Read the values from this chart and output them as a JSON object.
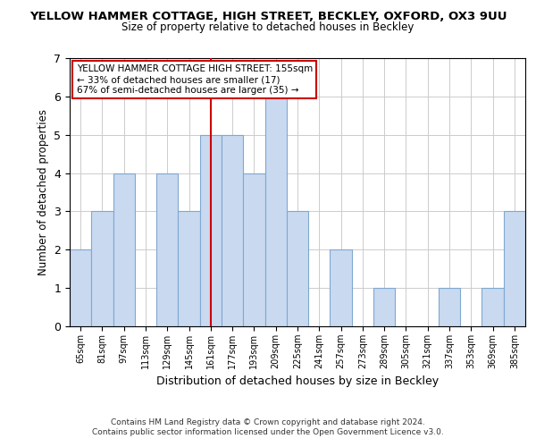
{
  "title": "YELLOW HAMMER COTTAGE, HIGH STREET, BECKLEY, OXFORD, OX3 9UU",
  "subtitle": "Size of property relative to detached houses in Beckley",
  "xlabel": "Distribution of detached houses by size in Beckley",
  "ylabel": "Number of detached properties",
  "bar_labels": [
    "65sqm",
    "81sqm",
    "97sqm",
    "113sqm",
    "129sqm",
    "145sqm",
    "161sqm",
    "177sqm",
    "193sqm",
    "209sqm",
    "225sqm",
    "241sqm",
    "257sqm",
    "273sqm",
    "289sqm",
    "305sqm",
    "321sqm",
    "337sqm",
    "353sqm",
    "369sqm",
    "385sqm"
  ],
  "bar_values": [
    2,
    3,
    4,
    0,
    4,
    3,
    5,
    5,
    4,
    6,
    3,
    0,
    2,
    0,
    1,
    0,
    0,
    1,
    0,
    1,
    3
  ],
  "bar_color": "#c9d9f0",
  "bar_edge_color": "#7fa8d0",
  "vline_x": 6,
  "vline_color": "#cc0000",
  "ylim": [
    0,
    7
  ],
  "yticks": [
    0,
    1,
    2,
    3,
    4,
    5,
    6,
    7
  ],
  "annotation_title": "YELLOW HAMMER COTTAGE HIGH STREET: 155sqm",
  "annotation_line1": "← 33% of detached houses are smaller (17)",
  "annotation_line2": "67% of semi-detached houses are larger (35) →",
  "annotation_box_color": "#ffffff",
  "annotation_box_edge": "#cc0000",
  "footer1": "Contains HM Land Registry data © Crown copyright and database right 2024.",
  "footer2": "Contains public sector information licensed under the Open Government Licence v3.0."
}
